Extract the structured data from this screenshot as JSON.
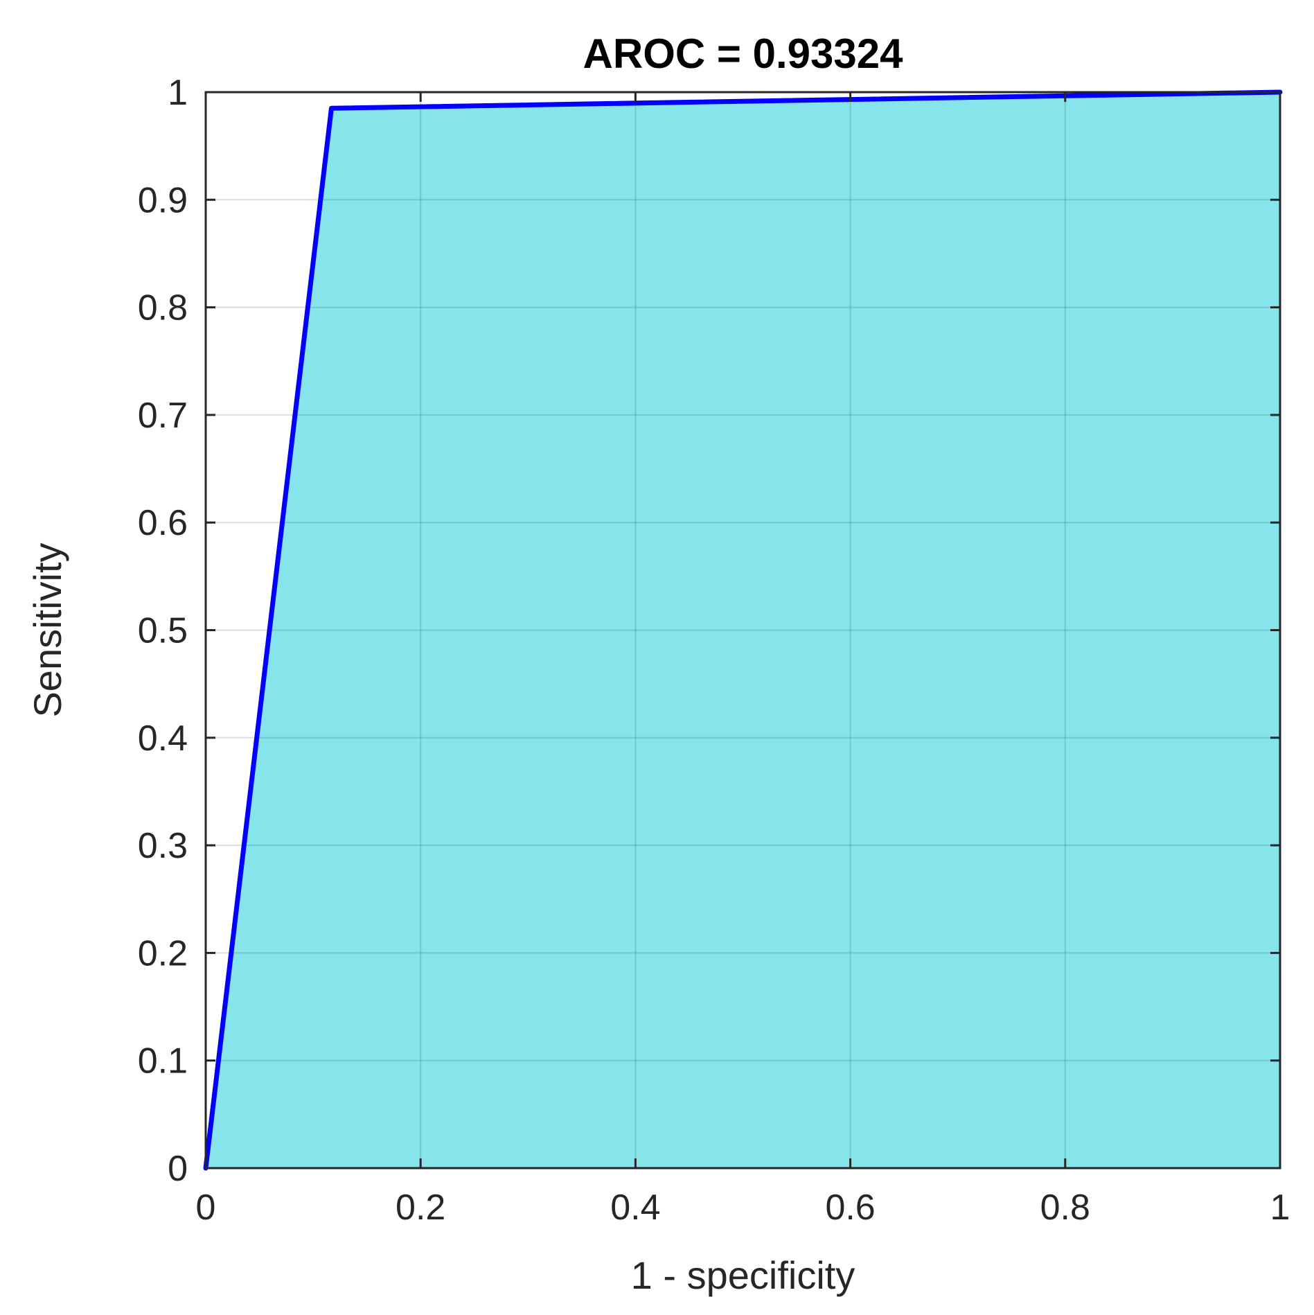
{
  "chart_data": {
    "type": "area",
    "title": "AROC = 0.93324",
    "xlabel": "1 - specificity",
    "ylabel": "Sensitivity",
    "xlim": [
      0,
      1
    ],
    "ylim": [
      0,
      1
    ],
    "grid": true,
    "x_ticks": [
      "0",
      "0.2",
      "0.4",
      "0.6",
      "0.8",
      "1"
    ],
    "y_ticks": [
      "0",
      "0.1",
      "0.2",
      "0.3",
      "0.4",
      "0.5",
      "0.6",
      "0.7",
      "0.8",
      "0.9",
      "1"
    ],
    "series": [
      {
        "x": [
          0,
          0.117,
          1
        ],
        "y": [
          0,
          0.985,
          1
        ]
      }
    ],
    "colors": {
      "line": "#0000ff",
      "fill": "#86e5eb",
      "grid": "#d9d9d9",
      "axis": "#262626"
    }
  }
}
